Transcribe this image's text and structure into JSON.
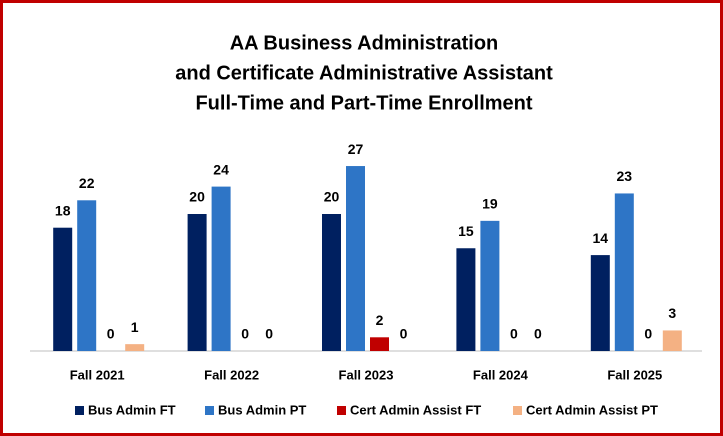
{
  "chart_data": {
    "type": "bar",
    "title": [
      "AA Business Administration",
      "and Certificate Administrative Assistant",
      "Full-Time and Part-Time Enrollment"
    ],
    "categories": [
      "Fall 2021",
      "Fall 2022",
      "Fall 2023",
      "Fall 2024",
      "Fall 2025"
    ],
    "series": [
      {
        "name": "Bus Admin FT",
        "color": "#002060",
        "values": [
          18,
          20,
          20,
          15,
          14
        ]
      },
      {
        "name": "Bus Admin PT",
        "color": "#2e75c6",
        "values": [
          22,
          24,
          27,
          19,
          23
        ]
      },
      {
        "name": "Cert Admin Assist FT",
        "color": "#c00000",
        "values": [
          0,
          0,
          2,
          0,
          0
        ]
      },
      {
        "name": "Cert Admin Assist PT",
        "color": "#f4b183",
        "values": [
          1,
          0,
          0,
          0,
          3
        ]
      }
    ],
    "legend": "bottom"
  }
}
